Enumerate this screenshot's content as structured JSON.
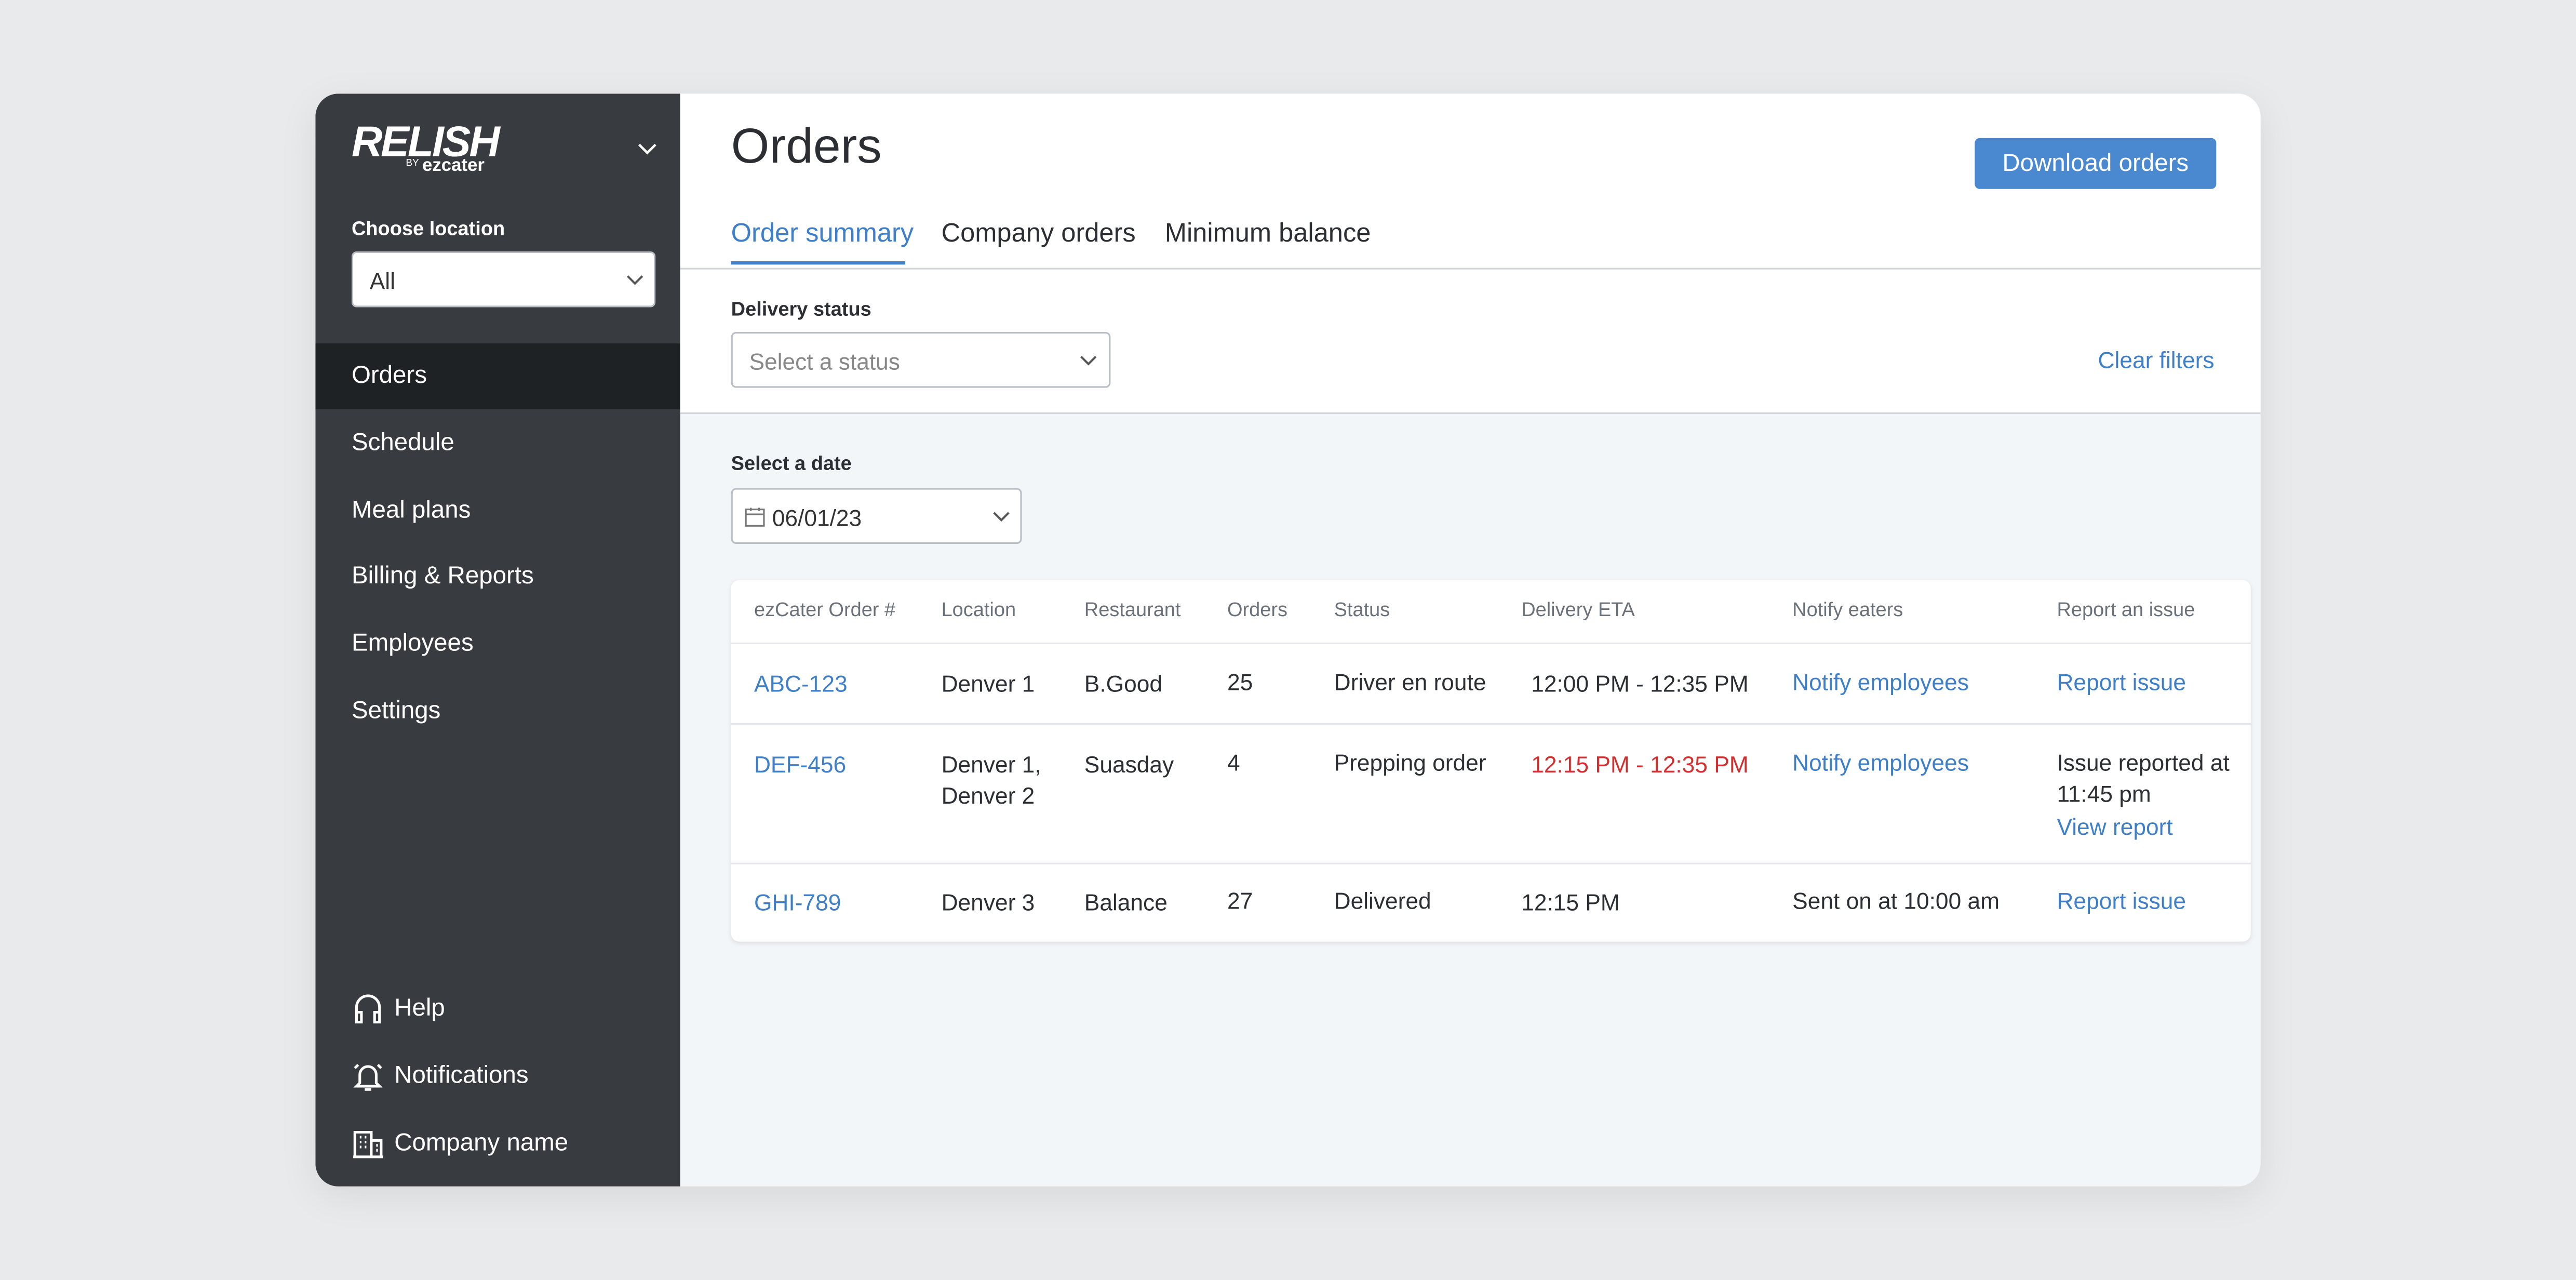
{
  "sidebar": {
    "logo": "RELISH",
    "logo_by": "BY",
    "logo_brand": "ezcater",
    "location_label": "Choose location",
    "location_value": "All",
    "nav": [
      "Orders",
      "Schedule",
      "Meal plans",
      "Billing & Reports",
      "Employees",
      "Settings"
    ],
    "footer": [
      "Help",
      "Notifications",
      "Company name"
    ]
  },
  "header": {
    "title": "Orders",
    "button": "Download orders",
    "tabs": [
      "Order summary",
      "Company orders",
      "Minimum balance"
    ]
  },
  "filters": {
    "status_label": "Delivery status",
    "status_placeholder": "Select a status",
    "clear": "Clear filters",
    "date_label": "Select a date",
    "date_value": "06/01/23"
  },
  "table": {
    "columns": [
      "ezCater Order #",
      "Location",
      "Restaurant",
      "Orders",
      "Status",
      "Delivery ETA",
      "Notify eaters",
      "Report an issue"
    ],
    "rows": [
      [
        "ABC-123",
        "Denver 1",
        "B.Good",
        "25",
        "Driver en route",
        "12:00 PM - 12:35 PM",
        "Notify employees",
        "Report issue"
      ],
      [
        "DEF-456",
        "Denver 1, Denver 2",
        "Suasday",
        "4",
        "Prepping order",
        "12:15 PM - 12:35 PM",
        "Notify employees",
        [
          "Issue reported at 11:45 pm",
          "View report"
        ]
      ],
      [
        "GHI-789",
        "Denver 3",
        "Balance",
        "27",
        "Delivered",
        "12:15 PM",
        "Sent on at 10:00 am",
        "Report issue"
      ]
    ]
  }
}
